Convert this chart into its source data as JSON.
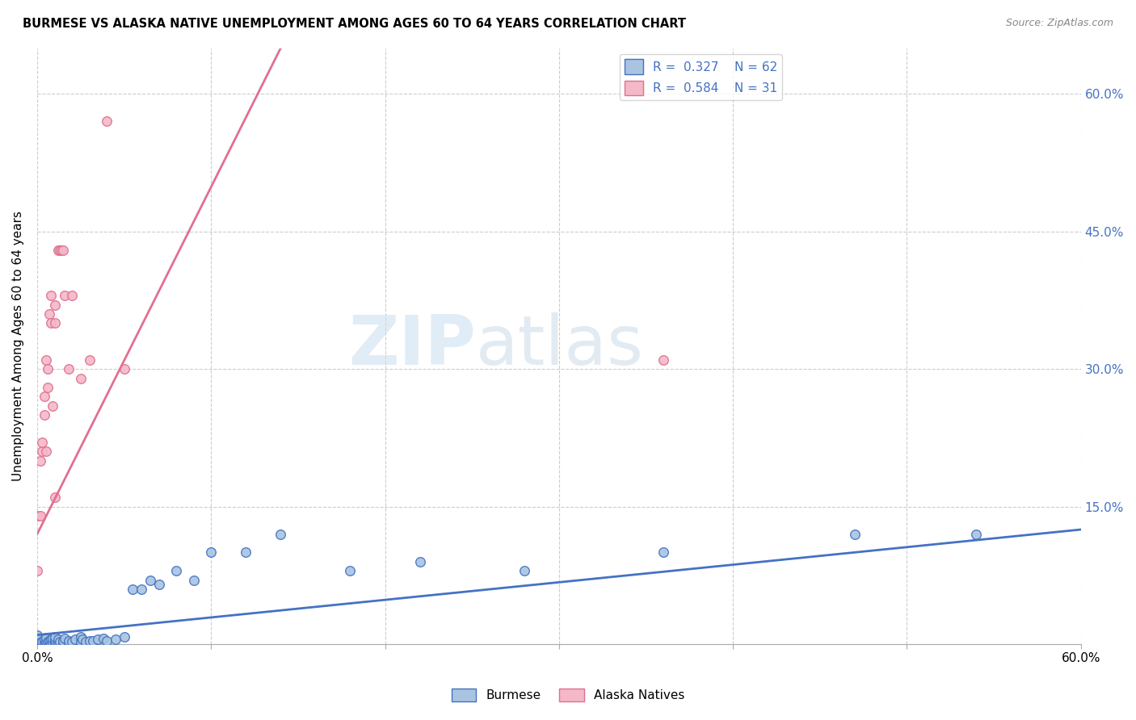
{
  "title": "BURMESE VS ALASKA NATIVE UNEMPLOYMENT AMONG AGES 60 TO 64 YEARS CORRELATION CHART",
  "source": "Source: ZipAtlas.com",
  "ylabel": "Unemployment Among Ages 60 to 64 years",
  "xlim": [
    0.0,
    0.6
  ],
  "ylim": [
    0.0,
    0.65
  ],
  "watermark_zip": "ZIP",
  "watermark_atlas": "atlas",
  "burmese_color": "#a8c4e0",
  "alaska_color": "#f4b8c8",
  "burmese_edge_color": "#4472c4",
  "alaska_edge_color": "#e07090",
  "burmese_line_color": "#4472c4",
  "alaska_line_color": "#e07090",
  "grid_color": "#cccccc",
  "right_tick_color": "#4472c4",
  "burmese_x": [
    0.0,
    0.0,
    0.0,
    0.0,
    0.0,
    0.002,
    0.002,
    0.003,
    0.003,
    0.004,
    0.004,
    0.004,
    0.005,
    0.005,
    0.005,
    0.006,
    0.007,
    0.007,
    0.008,
    0.008,
    0.009,
    0.009,
    0.01,
    0.01,
    0.01,
    0.01,
    0.012,
    0.012,
    0.013,
    0.015,
    0.015,
    0.016,
    0.018,
    0.018,
    0.02,
    0.022,
    0.025,
    0.025,
    0.026,
    0.028,
    0.03,
    0.032,
    0.035,
    0.038,
    0.04,
    0.045,
    0.05,
    0.055,
    0.06,
    0.065,
    0.07,
    0.08,
    0.09,
    0.1,
    0.12,
    0.14,
    0.18,
    0.22,
    0.28,
    0.36,
    0.47,
    0.54
  ],
  "burmese_y": [
    0.0,
    0.003,
    0.005,
    0.007,
    0.01,
    0.0,
    0.002,
    0.001,
    0.003,
    0.0,
    0.002,
    0.005,
    0.0,
    0.003,
    0.007,
    0.003,
    0.0,
    0.004,
    0.001,
    0.005,
    0.002,
    0.006,
    0.0,
    0.003,
    0.005,
    0.008,
    0.002,
    0.005,
    0.003,
    0.0,
    0.004,
    0.006,
    0.002,
    0.004,
    0.003,
    0.005,
    0.003,
    0.008,
    0.005,
    0.003,
    0.004,
    0.004,
    0.005,
    0.006,
    0.004,
    0.005,
    0.008,
    0.06,
    0.06,
    0.07,
    0.065,
    0.08,
    0.07,
    0.1,
    0.1,
    0.12,
    0.08,
    0.09,
    0.08,
    0.1,
    0.12,
    0.12
  ],
  "alaska_x": [
    0.0,
    0.0,
    0.002,
    0.002,
    0.003,
    0.003,
    0.004,
    0.004,
    0.005,
    0.005,
    0.006,
    0.006,
    0.007,
    0.008,
    0.008,
    0.009,
    0.01,
    0.01,
    0.01,
    0.012,
    0.013,
    0.014,
    0.015,
    0.016,
    0.018,
    0.02,
    0.025,
    0.03,
    0.04,
    0.05,
    0.36
  ],
  "alaska_y": [
    0.08,
    0.14,
    0.14,
    0.2,
    0.21,
    0.22,
    0.25,
    0.27,
    0.21,
    0.31,
    0.28,
    0.3,
    0.36,
    0.35,
    0.38,
    0.26,
    0.16,
    0.35,
    0.37,
    0.43,
    0.43,
    0.43,
    0.43,
    0.38,
    0.3,
    0.38,
    0.29,
    0.31,
    0.57,
    0.3,
    0.31
  ],
  "alaska_trend_x0": 0.0,
  "alaska_trend_y0": 0.12,
  "alaska_trend_x1": 0.14,
  "alaska_trend_y1": 0.65,
  "burmese_trend_x0": 0.0,
  "burmese_trend_y0": 0.01,
  "burmese_trend_x1": 0.6,
  "burmese_trend_y1": 0.125
}
